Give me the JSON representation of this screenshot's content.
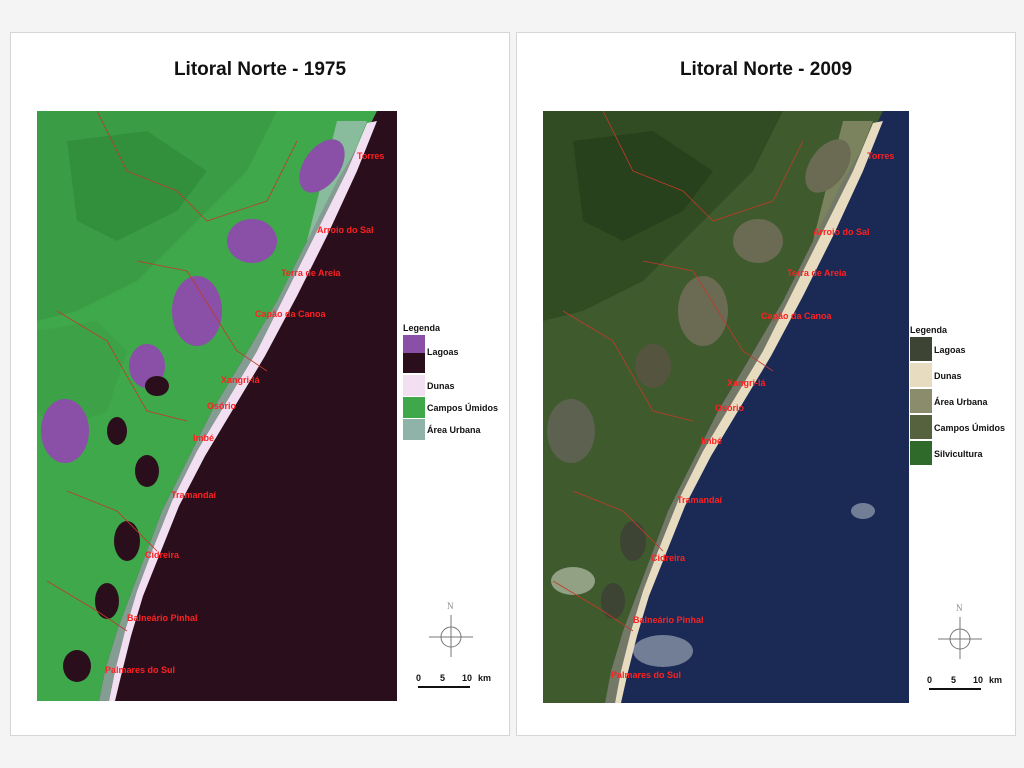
{
  "colors": {
    "ocean_1975": "#2a0e1c",
    "land_1975": "#3fa84b",
    "lake_1975": "#8a4fa6",
    "ocean_2009": "#1a2a55",
    "land_2009": "#3f5a2c",
    "lake_2009": "#6b6a52",
    "label": "#ff2020"
  },
  "map_1975": {
    "title": "Litoral Norte - 1975",
    "places": [
      "Torres",
      "Arroio do Sal",
      "Terra de Areia",
      "Capão da Canoa",
      "Xangri-lá",
      "Osório",
      "Imbé",
      "Tramandaí",
      "Cidreira",
      "Balneário Pinhal",
      "Palmares do Sul"
    ],
    "legend": {
      "heading": "Legenda",
      "items": [
        {
          "label": "Lagoas",
          "color": "#8a4fa6",
          "color2": "#2a0e1c"
        },
        {
          "label": "Dunas",
          "color": "#f3dff2"
        },
        {
          "label": "Campos Úmidos",
          "color": "#3fa84b"
        },
        {
          "label": "Área Urbana",
          "color": "#8fb3a8"
        }
      ]
    },
    "north": "N",
    "scale": {
      "ticks": [
        "0",
        "5",
        "10"
      ],
      "unit": "km"
    }
  },
  "map_2009": {
    "title": "Litoral Norte - 2009",
    "places": [
      "Torres",
      "Arroio do Sal",
      "Terra de Areia",
      "Capão da Canoa",
      "Xangri-lá",
      "Osório",
      "Imbé",
      "Tramandaí",
      "Cidreira",
      "Balneário Pinhal",
      "Palmares do Sul"
    ],
    "legend": {
      "heading": "Legenda",
      "items": [
        {
          "label": "Lagoas",
          "color": "#3d4433"
        },
        {
          "label": "Dunas",
          "color": "#e8dcc0"
        },
        {
          "label": "Área Urbana",
          "color": "#8a8c6c"
        },
        {
          "label": "Campos Úmidos",
          "color": "#56623e"
        },
        {
          "label": "Silvicultura",
          "color": "#2f6a2a"
        }
      ]
    },
    "north": "N",
    "scale": {
      "ticks": [
        "0",
        "5",
        "10"
      ],
      "unit": "km"
    }
  }
}
